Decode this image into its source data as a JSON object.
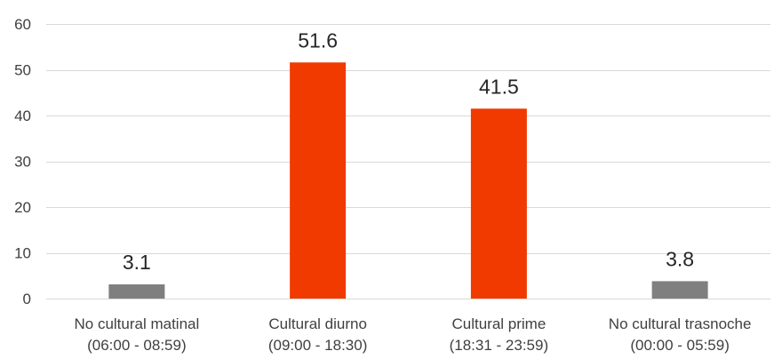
{
  "chart_data": {
    "type": "bar",
    "title": "",
    "xlabel": "",
    "ylabel": "",
    "ylim": [
      0,
      60
    ],
    "yticks": [
      "0",
      "10",
      "20",
      "30",
      "40",
      "50",
      "60"
    ],
    "grid": true,
    "legend": "none",
    "categories": [
      {
        "line1": "No cultural matinal",
        "line2": "(06:00 - 08:59)"
      },
      {
        "line1": "Cultural diurno",
        "line2": "(09:00 - 18:30)"
      },
      {
        "line1": "Cultural prime",
        "line2": "(18:31 - 23:59)"
      },
      {
        "line1": "No cultural trasnoche",
        "line2": "(00:00 - 05:59)"
      }
    ],
    "values": [
      3.1,
      51.6,
      41.5,
      3.8
    ],
    "data_labels": [
      "3.1",
      "51.6",
      "41.5",
      "3.8"
    ],
    "bar_colors": [
      "#7f7f7f",
      "#f03a00",
      "#f03a00",
      "#7f7f7f"
    ]
  }
}
